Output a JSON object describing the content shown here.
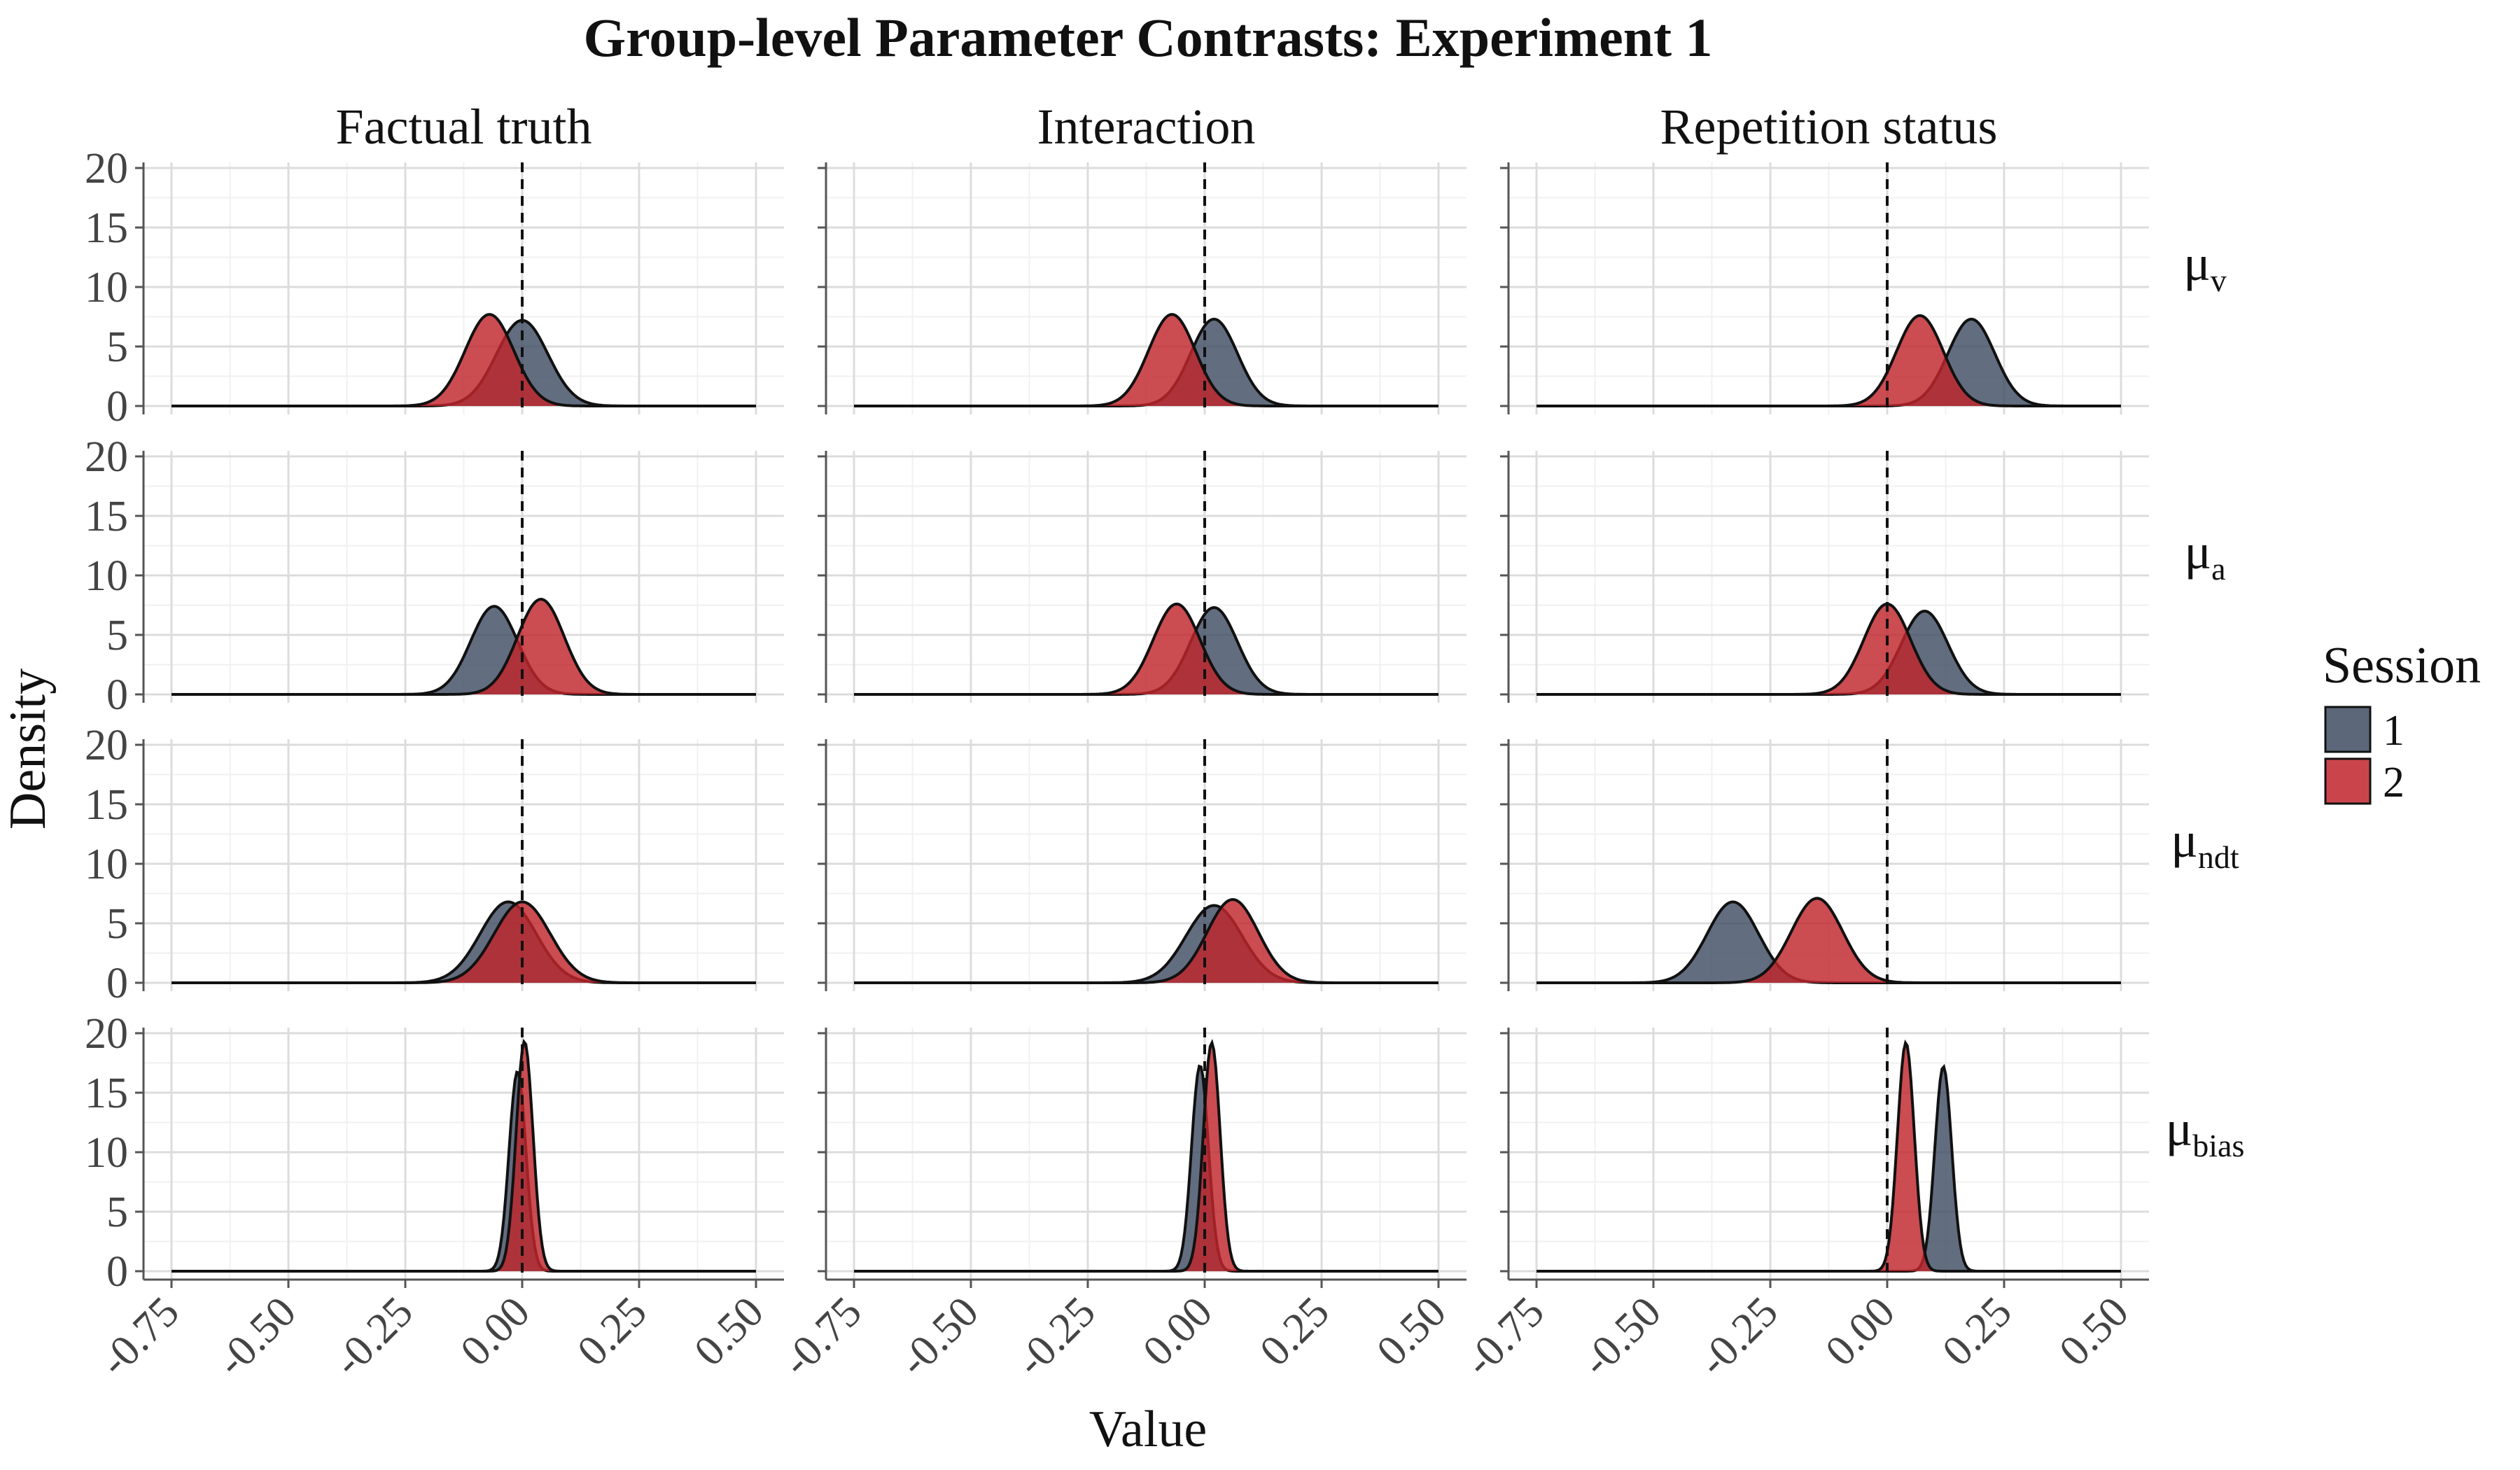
{
  "chart_data": {
    "type": "area",
    "title": "Group-level Parameter Contrasts: Experiment 1",
    "xlabel": "Value",
    "ylabel": "Density",
    "xlim": [
      -0.75,
      0.5
    ],
    "ylim": [
      0,
      20
    ],
    "x_ticks": [
      "-0.75",
      "-0.50",
      "-0.25",
      "0.00",
      "0.25",
      "0.50"
    ],
    "y_ticks": [
      "0",
      "5",
      "10",
      "15",
      "20"
    ],
    "reference_line": 0,
    "grid": true,
    "legend": {
      "title": "Session",
      "position": "right",
      "entries": [
        {
          "label": "1",
          "color": "#3f4d63"
        },
        {
          "label": "2",
          "color": "#c0242b"
        }
      ]
    },
    "columns": [
      "Factual truth",
      "Interaction",
      "Repetition status"
    ],
    "rows": [
      {
        "symbol": "μ",
        "sub": "v"
      },
      {
        "symbol": "μ",
        "sub": "a"
      },
      {
        "symbol": "μ",
        "sub": "ndt"
      },
      {
        "symbol": "μ",
        "sub": "bias"
      }
    ],
    "densities": [
      [
        {
          "session1": {
            "mean": 0.0,
            "sd": 0.055,
            "peak": 7.2
          },
          "session2": {
            "mean": -0.07,
            "sd": 0.052,
            "peak": 7.7
          }
        },
        {
          "session1": {
            "mean": 0.02,
            "sd": 0.05,
            "peak": 7.3
          },
          "session2": {
            "mean": -0.07,
            "sd": 0.05,
            "peak": 7.7
          }
        },
        {
          "session1": {
            "mean": 0.18,
            "sd": 0.05,
            "peak": 7.3
          },
          "session2": {
            "mean": 0.07,
            "sd": 0.05,
            "peak": 7.6
          }
        }
      ],
      [
        {
          "session1": {
            "mean": -0.06,
            "sd": 0.05,
            "peak": 7.4
          },
          "session2": {
            "mean": 0.04,
            "sd": 0.05,
            "peak": 8.0
          }
        },
        {
          "session1": {
            "mean": 0.02,
            "sd": 0.05,
            "peak": 7.3
          },
          "session2": {
            "mean": -0.06,
            "sd": 0.05,
            "peak": 7.6
          }
        },
        {
          "session1": {
            "mean": 0.08,
            "sd": 0.05,
            "peak": 7.0
          },
          "session2": {
            "mean": 0.0,
            "sd": 0.05,
            "peak": 7.6
          }
        }
      ],
      [
        {
          "session1": {
            "mean": -0.03,
            "sd": 0.06,
            "peak": 6.8
          },
          "session2": {
            "mean": 0.0,
            "sd": 0.06,
            "peak": 6.8
          }
        },
        {
          "session1": {
            "mean": 0.02,
            "sd": 0.06,
            "peak": 6.5
          },
          "session2": {
            "mean": 0.06,
            "sd": 0.055,
            "peak": 7.0
          }
        },
        {
          "session1": {
            "mean": -0.33,
            "sd": 0.055,
            "peak": 6.8
          },
          "session2": {
            "mean": -0.15,
            "sd": 0.055,
            "peak": 7.1
          }
        }
      ],
      [
        {
          "session1": {
            "mean": -0.01,
            "sd": 0.018,
            "peak": 16.8
          },
          "session2": {
            "mean": 0.005,
            "sd": 0.018,
            "peak": 19.3
          }
        },
        {
          "session1": {
            "mean": -0.01,
            "sd": 0.018,
            "peak": 17.3
          },
          "session2": {
            "mean": 0.015,
            "sd": 0.018,
            "peak": 19.2
          }
        },
        {
          "session1": {
            "mean": 0.12,
            "sd": 0.018,
            "peak": 17.2
          },
          "session2": {
            "mean": 0.04,
            "sd": 0.018,
            "peak": 19.2
          }
        }
      ]
    ]
  }
}
